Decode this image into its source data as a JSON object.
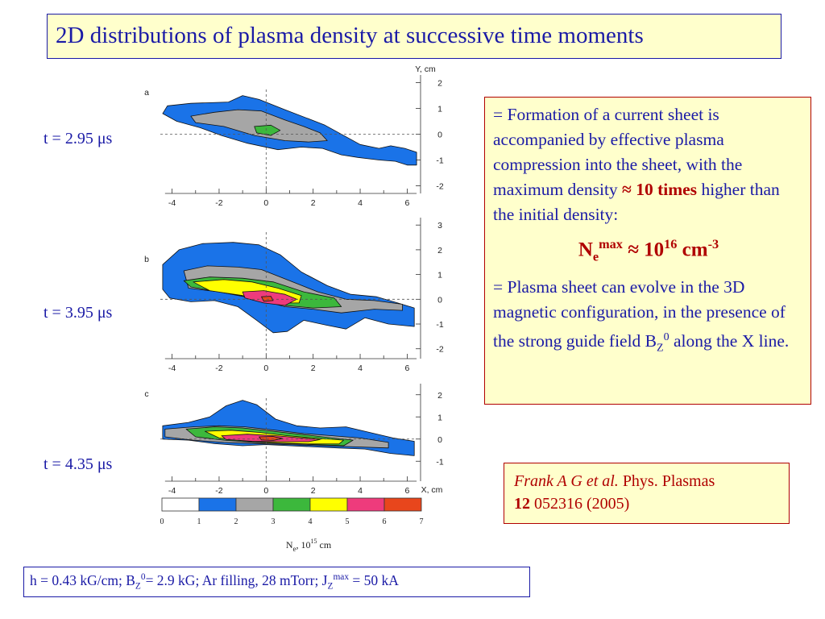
{
  "title": "2D distributions of plasma density at successive time moments",
  "time_labels": [
    "t = 2.95 μs",
    "t = 3.95 μs",
    "t = 4.35 μs"
  ],
  "info": {
    "p1_prefix": "= Formation of a current sheet is accompanied by effective plasma compression into the sheet, with the maximum density ",
    "p1_highlight": "≈ 10 times",
    "p1_suffix": " higher than the initial density:",
    "formula_base": "N",
    "formula_sub": "e",
    "formula_sup": "max",
    "formula_mid": " ≈ 10",
    "formula_exp": "16",
    "formula_unit": " cm",
    "formula_unit_exp": "-3",
    "p2_prefix": "= Plasma sheet can evolve in the 3D magnetic configuration, in the presence of the strong guide field B",
    "p2_sub": "Z",
    "p2_sup": "0",
    "p2_suffix": " along the X line."
  },
  "reference": {
    "authors": "Frank A G et al.",
    "journal": " Phys. Plasmas",
    "volume": "12",
    "rest": " 052316 (2005)"
  },
  "params": {
    "a": "h = 0.43 kG/cm; B",
    "b": "Z",
    "c": "0",
    "d": "= 2.9 kG; Ar filling, 28 mTorr; J",
    "e": "Z",
    "f": "max",
    "g": " = 50 kA"
  },
  "colors": {
    "title_text": "#1a1aa6",
    "highlight": "#b00000",
    "box_fill": "#ffffcc",
    "levels": [
      "#ffffff",
      "#1a73e8",
      "#a6a6a6",
      "#3cb83c",
      "#ffff00",
      "#ee3b7c",
      "#e8461c"
    ]
  },
  "chart_data": [
    {
      "type": "heatmap",
      "panel": "a",
      "xlabel": "",
      "ylabel": "Y, cm",
      "xlim": [
        -4.5,
        6.5
      ],
      "ylim": [
        -2.3,
        2.3
      ],
      "x_ticks": [
        "-4",
        "-2",
        "0",
        "2",
        "4",
        "6"
      ],
      "y_ticks": [
        "2",
        "1",
        "0",
        "-1",
        "-2"
      ],
      "grid": false,
      "regions": [
        {
          "level": 1,
          "points": [
            [
              -4.2,
              1.1
            ],
            [
              -3.2,
              1.2
            ],
            [
              -1.6,
              1.25
            ],
            [
              -1.0,
              1.5
            ],
            [
              -0.3,
              1.35
            ],
            [
              0.8,
              0.95
            ],
            [
              1.8,
              0.6
            ],
            [
              2.5,
              0.35
            ],
            [
              3.4,
              -0.1
            ],
            [
              4.0,
              -0.4
            ],
            [
              4.8,
              -0.55
            ],
            [
              5.3,
              -0.45
            ],
            [
              5.9,
              -0.55
            ],
            [
              6.4,
              -0.7
            ],
            [
              6.4,
              -1.2
            ],
            [
              6.0,
              -1.2
            ],
            [
              5.5,
              -1.05
            ],
            [
              4.8,
              -1.0
            ],
            [
              3.9,
              -0.9
            ],
            [
              3.2,
              -0.8
            ],
            [
              2.4,
              -0.55
            ],
            [
              1.5,
              -0.5
            ],
            [
              0.5,
              -0.6
            ],
            [
              -0.8,
              -0.35
            ],
            [
              -1.9,
              -0.05
            ],
            [
              -2.8,
              0.25
            ],
            [
              -3.8,
              0.5
            ],
            [
              -4.4,
              0.8
            ]
          ]
        },
        {
          "level": 2,
          "points": [
            [
              -3.2,
              0.7
            ],
            [
              -2.2,
              0.85
            ],
            [
              -1.2,
              0.95
            ],
            [
              -0.2,
              0.9
            ],
            [
              0.8,
              0.55
            ],
            [
              1.6,
              0.3
            ],
            [
              2.3,
              0.05
            ],
            [
              2.6,
              -0.25
            ],
            [
              1.8,
              -0.3
            ],
            [
              0.8,
              -0.25
            ],
            [
              -0.5,
              -0.05
            ],
            [
              -1.8,
              0.3
            ],
            [
              -3.0,
              0.45
            ]
          ]
        },
        {
          "level": 3,
          "points": [
            [
              -0.5,
              0.3
            ],
            [
              0.2,
              0.35
            ],
            [
              0.6,
              0.15
            ],
            [
              0.2,
              -0.05
            ],
            [
              -0.4,
              0.05
            ]
          ]
        }
      ]
    },
    {
      "type": "heatmap",
      "panel": "b",
      "xlabel": "",
      "ylabel": "",
      "xlim": [
        -4.5,
        6.5
      ],
      "ylim": [
        -2.4,
        3.3
      ],
      "x_ticks": [
        "-4",
        "-2",
        "0",
        "2",
        "4",
        "6"
      ],
      "y_ticks": [
        "3",
        "2",
        "1",
        "0",
        "-1",
        "-2"
      ],
      "grid": false,
      "regions": [
        {
          "level": 1,
          "points": [
            [
              -4.4,
              1.4
            ],
            [
              -3.7,
              2.0
            ],
            [
              -2.7,
              2.25
            ],
            [
              -1.4,
              2.3
            ],
            [
              -0.3,
              2.2
            ],
            [
              0.6,
              1.8
            ],
            [
              1.5,
              1.1
            ],
            [
              2.6,
              0.55
            ],
            [
              3.6,
              0.2
            ],
            [
              4.7,
              0.1
            ],
            [
              5.6,
              -0.15
            ],
            [
              6.3,
              -0.35
            ],
            [
              6.3,
              -1.1
            ],
            [
              5.2,
              -1.0
            ],
            [
              4.2,
              -0.75
            ],
            [
              3.4,
              -1.2
            ],
            [
              2.6,
              -1.05
            ],
            [
              1.6,
              -0.85
            ],
            [
              0.9,
              -1.3
            ],
            [
              0.3,
              -1.35
            ],
            [
              -0.4,
              -0.85
            ],
            [
              -1.2,
              -0.3
            ],
            [
              -2.2,
              -0.05
            ],
            [
              -3.2,
              -0.1
            ],
            [
              -4.1,
              0.05
            ],
            [
              -4.4,
              0.4
            ]
          ]
        },
        {
          "level": 2,
          "points": [
            [
              -3.5,
              1.15
            ],
            [
              -2.5,
              1.35
            ],
            [
              -1.2,
              1.3
            ],
            [
              -0.2,
              1.2
            ],
            [
              1.0,
              0.75
            ],
            [
              2.2,
              0.3
            ],
            [
              3.4,
              0.0
            ],
            [
              4.6,
              -0.05
            ],
            [
              5.8,
              -0.2
            ],
            [
              5.8,
              -0.45
            ],
            [
              4.6,
              -0.4
            ],
            [
              3.2,
              -0.55
            ],
            [
              2.0,
              -0.4
            ],
            [
              0.8,
              -0.3
            ],
            [
              -0.6,
              0.05
            ],
            [
              -2.0,
              0.3
            ],
            [
              -3.3,
              0.45
            ]
          ]
        },
        {
          "level": 3,
          "points": [
            [
              -3.5,
              0.75
            ],
            [
              -2.4,
              0.9
            ],
            [
              -1.0,
              0.85
            ],
            [
              0.3,
              0.7
            ],
            [
              1.6,
              0.3
            ],
            [
              2.9,
              0.05
            ],
            [
              3.2,
              -0.3
            ],
            [
              2.0,
              -0.35
            ],
            [
              0.8,
              -0.25
            ],
            [
              -0.6,
              0.05
            ],
            [
              -2.0,
              0.3
            ],
            [
              -3.2,
              0.5
            ]
          ]
        },
        {
          "level": 4,
          "points": [
            [
              -3.1,
              0.7
            ],
            [
              -1.8,
              0.8
            ],
            [
              -0.6,
              0.7
            ],
            [
              0.5,
              0.45
            ],
            [
              1.5,
              0.15
            ],
            [
              1.4,
              -0.15
            ],
            [
              0.2,
              -0.15
            ],
            [
              -1.0,
              0.15
            ],
            [
              -2.4,
              0.35
            ]
          ]
        },
        {
          "level": 5,
          "points": [
            [
              -1.0,
              0.3
            ],
            [
              -0.1,
              0.35
            ],
            [
              0.8,
              0.2
            ],
            [
              1.3,
              0.0
            ],
            [
              0.8,
              -0.25
            ],
            [
              -0.1,
              -0.15
            ],
            [
              -0.9,
              0.05
            ]
          ]
        },
        {
          "level": 6,
          "points": [
            [
              -0.2,
              0.1
            ],
            [
              0.2,
              0.12
            ],
            [
              0.3,
              -0.05
            ],
            [
              -0.1,
              -0.08
            ]
          ]
        }
      ]
    },
    {
      "type": "heatmap",
      "panel": "c",
      "xlabel": "X, cm",
      "ylabel": "",
      "xlim": [
        -4.5,
        6.5
      ],
      "ylim": [
        -1.9,
        2.5
      ],
      "x_ticks": [
        "-4",
        "-2",
        "0",
        "2",
        "4",
        "6"
      ],
      "y_ticks": [
        "2",
        "1",
        "0",
        "-1"
      ],
      "grid": false,
      "regions": [
        {
          "level": 1,
          "points": [
            [
              -4.4,
              0.6
            ],
            [
              -3.3,
              0.75
            ],
            [
              -2.4,
              1.0
            ],
            [
              -1.7,
              1.5
            ],
            [
              -1.0,
              1.75
            ],
            [
              -0.4,
              1.55
            ],
            [
              0.4,
              0.9
            ],
            [
              1.3,
              0.6
            ],
            [
              2.3,
              0.5
            ],
            [
              3.4,
              0.55
            ],
            [
              4.4,
              0.3
            ],
            [
              5.4,
              0.05
            ],
            [
              6.3,
              -0.1
            ],
            [
              6.3,
              -0.75
            ],
            [
              5.3,
              -0.65
            ],
            [
              4.2,
              -0.45
            ],
            [
              3.1,
              -0.4
            ],
            [
              2.0,
              -0.35
            ],
            [
              1.0,
              -0.3
            ],
            [
              0.0,
              -0.25
            ],
            [
              -1.0,
              -0.3
            ],
            [
              -2.2,
              -0.2
            ],
            [
              -3.3,
              -0.05
            ],
            [
              -4.4,
              0.0
            ]
          ]
        },
        {
          "level": 2,
          "points": [
            [
              -4.3,
              0.45
            ],
            [
              -3.1,
              0.55
            ],
            [
              -2.0,
              0.6
            ],
            [
              -0.9,
              0.55
            ],
            [
              0.4,
              0.4
            ],
            [
              1.6,
              0.25
            ],
            [
              2.8,
              0.15
            ],
            [
              4.0,
              0.05
            ],
            [
              5.2,
              -0.15
            ],
            [
              5.2,
              -0.4
            ],
            [
              3.8,
              -0.35
            ],
            [
              2.4,
              -0.3
            ],
            [
              1.0,
              -0.25
            ],
            [
              -0.4,
              -0.2
            ],
            [
              -1.8,
              -0.15
            ],
            [
              -3.1,
              -0.05
            ],
            [
              -4.3,
              0.1
            ]
          ]
        },
        {
          "level": 3,
          "points": [
            [
              -3.4,
              0.45
            ],
            [
              -2.2,
              0.55
            ],
            [
              -1.0,
              0.5
            ],
            [
              0.3,
              0.35
            ],
            [
              1.6,
              0.2
            ],
            [
              2.8,
              0.05
            ],
            [
              3.7,
              -0.05
            ],
            [
              3.3,
              -0.3
            ],
            [
              2.0,
              -0.25
            ],
            [
              0.8,
              -0.2
            ],
            [
              -0.5,
              -0.15
            ],
            [
              -1.8,
              -0.05
            ],
            [
              -3.0,
              0.1
            ]
          ]
        },
        {
          "level": 4,
          "points": [
            [
              -2.6,
              0.35
            ],
            [
              -1.5,
              0.4
            ],
            [
              -0.3,
              0.3
            ],
            [
              0.9,
              0.15
            ],
            [
              2.0,
              0.05
            ],
            [
              3.3,
              -0.05
            ],
            [
              3.1,
              -0.22
            ],
            [
              1.8,
              -0.22
            ],
            [
              0.5,
              -0.17
            ],
            [
              -0.8,
              -0.1
            ],
            [
              -2.0,
              0.05
            ]
          ]
        },
        {
          "level": 5,
          "points": [
            [
              -1.9,
              0.15
            ],
            [
              -0.8,
              0.22
            ],
            [
              0.4,
              0.15
            ],
            [
              1.5,
              0.05
            ],
            [
              2.3,
              -0.02
            ],
            [
              1.8,
              -0.12
            ],
            [
              0.6,
              -0.12
            ],
            [
              -0.6,
              -0.1
            ],
            [
              -1.7,
              -0.02
            ]
          ]
        },
        {
          "level": 6,
          "points": [
            [
              -0.3,
              0.1
            ],
            [
              0.3,
              0.12
            ],
            [
              0.7,
              0.02
            ],
            [
              0.3,
              -0.06
            ],
            [
              -0.2,
              -0.04
            ]
          ]
        }
      ]
    },
    {
      "type": "colorbar",
      "ticks": [
        "0",
        "1",
        "2",
        "3",
        "4",
        "5",
        "6",
        "7"
      ],
      "label_base": "N",
      "label_sub": "e",
      "label_mid": ",  10",
      "label_exp": "15",
      "label_unit": "  cm"
    }
  ]
}
